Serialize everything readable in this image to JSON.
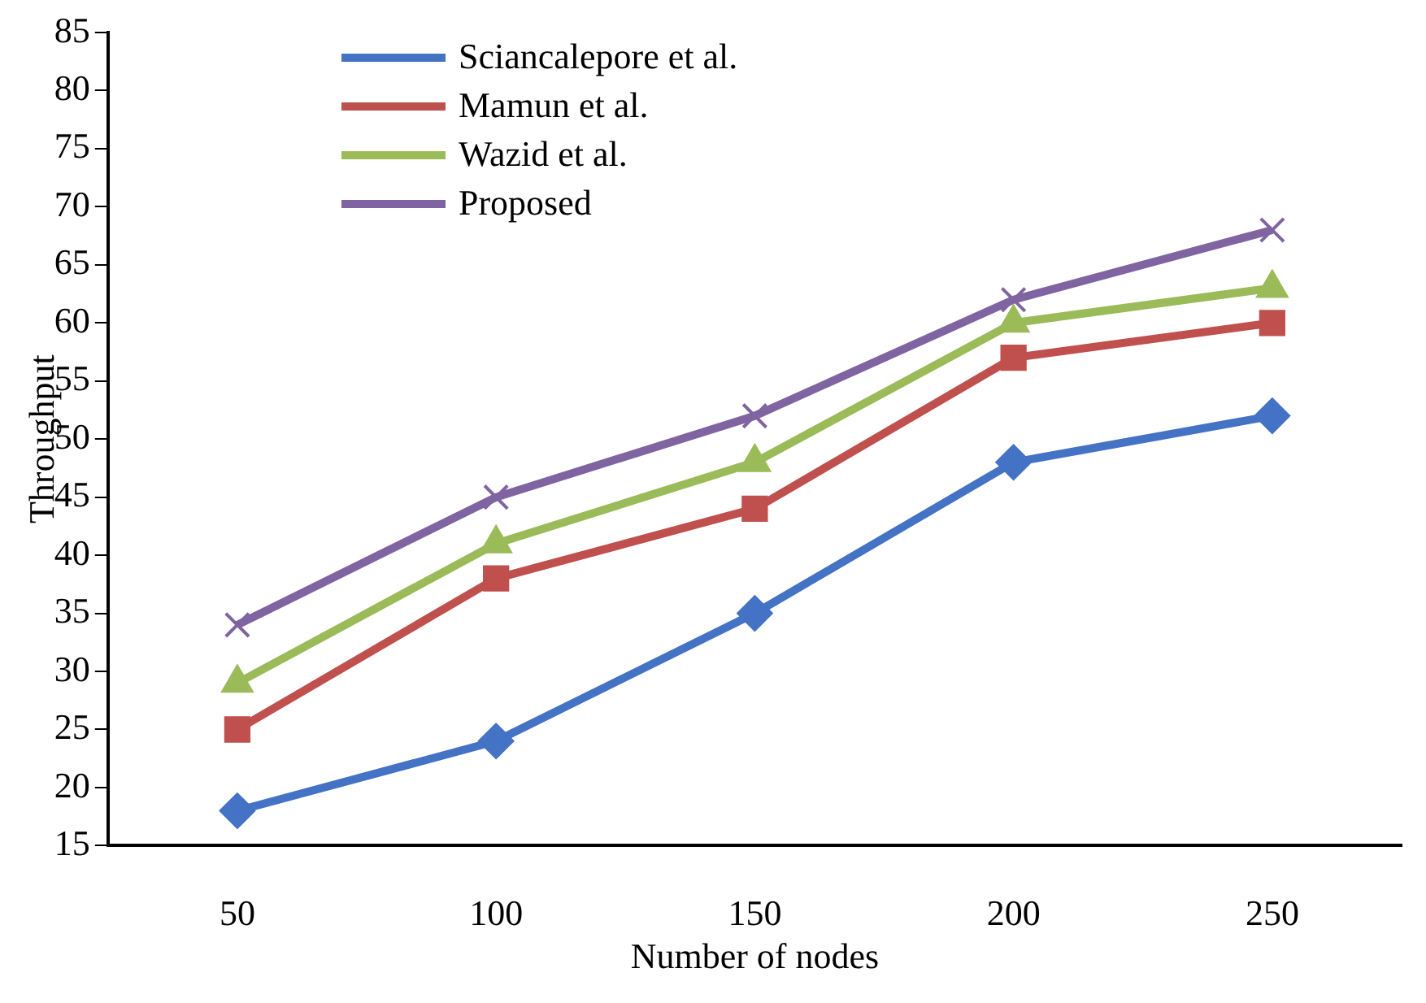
{
  "chart_data": {
    "type": "line",
    "xlabel": "Number of nodes",
    "ylabel": "Throughput",
    "categories": [
      "50",
      "100",
      "150",
      "200",
      "250"
    ],
    "series": [
      {
        "name": "Sciancalepore et al.",
        "color": "#4472c4",
        "marker": "diamond",
        "values": [
          18,
          24,
          35,
          48,
          52
        ]
      },
      {
        "name": "Mamun et al.",
        "color": "#c0504d",
        "marker": "square",
        "values": [
          25,
          38,
          44,
          57,
          60
        ]
      },
      {
        "name": "Wazid et al.",
        "color": "#9bbb59",
        "marker": "triangle",
        "values": [
          29,
          41,
          48,
          60,
          63
        ]
      },
      {
        "name": "Proposed",
        "color": "#8064a2",
        "marker": "cross",
        "values": [
          34,
          45,
          52,
          62,
          68
        ]
      }
    ],
    "ylim": [
      15,
      85
    ],
    "yticks": [
      15,
      20,
      25,
      30,
      35,
      40,
      45,
      50,
      55,
      60,
      65,
      70,
      75,
      80,
      85
    ],
    "grid": false,
    "legend": "top left",
    "line_style": "solid"
  }
}
